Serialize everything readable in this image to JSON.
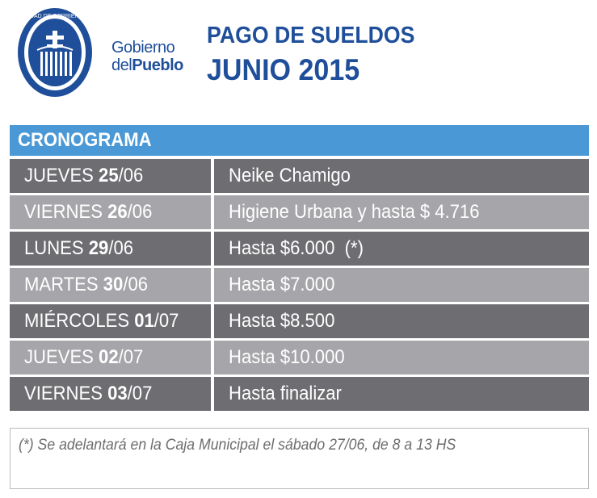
{
  "logo": {
    "ring_text": "CIUDAD DE CORRIENTES",
    "line1": "Gobierno",
    "line2_a": "del",
    "line2_b": "Pueblo"
  },
  "title": {
    "line1": "PAGO DE SUELDOS",
    "line2": "JUNIO 2015"
  },
  "header": "CRONOGRAMA",
  "schedule": [
    {
      "day": "JUEVES",
      "date_day": "25",
      "date_rest": "/06",
      "desc": "Neike Chamigo"
    },
    {
      "day": "VIERNES",
      "date_day": "26",
      "date_rest": "/06",
      "desc": "Higiene Urbana y hasta $ 4.716"
    },
    {
      "day": "LUNES",
      "date_day": "29",
      "date_rest": "/06",
      "desc": "Hasta $6.000  (*)"
    },
    {
      "day": "MARTES",
      "date_day": "30",
      "date_rest": "/06",
      "desc": "Hasta $7.000"
    },
    {
      "day": "MIÉRCOLES",
      "date_day": "01",
      "date_rest": "/07",
      "desc": "Hasta $8.500"
    },
    {
      "day": "JUEVES",
      "date_day": "02",
      "date_rest": "/07",
      "desc": "Hasta $10.000"
    },
    {
      "day": "VIERNES",
      "date_day": "03",
      "date_rest": "/07",
      "desc": "Hasta finalizar"
    }
  ],
  "note": "(*) Se adelantará en la Caja Municipal el sábado 27/06, de 8 a 13 HS",
  "colors": {
    "brand_blue": "#1f4f9a",
    "header_blue": "#4a98d5",
    "row_dark": "#6e6d71",
    "row_light": "#a6a5a9"
  }
}
